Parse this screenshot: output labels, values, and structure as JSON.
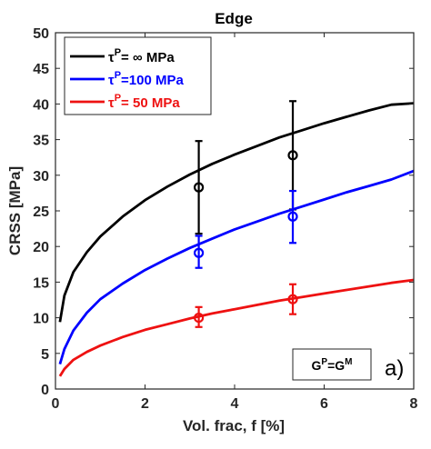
{
  "chart_data": {
    "type": "line",
    "title": "Edge",
    "xlabel": "Vol. frac, f [%]",
    "ylabel": "CRSS [MPa]",
    "xlim": [
      0,
      8
    ],
    "ylim": [
      0,
      50
    ],
    "xticks": [
      0,
      2,
      4,
      6,
      8
    ],
    "yticks": [
      0,
      5,
      10,
      15,
      20,
      25,
      30,
      35,
      40,
      45,
      50
    ],
    "grid": false,
    "legend_position": "top-left",
    "series": [
      {
        "name_parts": [
          "τ",
          "P",
          "=  ∞ MPa"
        ],
        "color": "#000000",
        "curve": {
          "x": [
            0.1,
            0.2,
            0.4,
            0.7,
            1,
            1.5,
            2,
            2.5,
            3,
            3.5,
            4,
            4.5,
            5,
            5.5,
            6,
            6.5,
            7,
            7.5,
            8
          ],
          "y": [
            9.4,
            13.1,
            16.4,
            19.2,
            21.4,
            24.2,
            26.5,
            28.4,
            30.1,
            31.6,
            32.9,
            34.1,
            35.3,
            36.3,
            37.3,
            38.2,
            39.1,
            39.9,
            40.1
          ]
        },
        "points": [
          {
            "x": 3.2,
            "y": 28.3,
            "ylo": 21.8,
            "yhi": 34.8
          },
          {
            "x": 5.3,
            "y": 32.8,
            "ylo": 25.2,
            "yhi": 40.4
          }
        ]
      },
      {
        "name_parts": [
          "τ",
          "P",
          "=100 MPa"
        ],
        "color": "#0000ff",
        "curve": {
          "x": [
            0.1,
            0.2,
            0.4,
            0.7,
            1,
            1.5,
            2,
            2.5,
            3,
            3.5,
            4,
            4.5,
            5,
            5.5,
            6,
            6.5,
            7,
            7.5,
            8
          ],
          "y": [
            3.5,
            5.6,
            8.2,
            10.7,
            12.6,
            14.8,
            16.7,
            18.3,
            19.8,
            21.1,
            22.4,
            23.5,
            24.6,
            25.6,
            26.6,
            27.6,
            28.5,
            29.4,
            30.6
          ]
        },
        "points": [
          {
            "x": 3.2,
            "y": 19.1,
            "ylo": 17.0,
            "yhi": 21.5
          },
          {
            "x": 5.3,
            "y": 24.2,
            "ylo": 20.5,
            "yhi": 27.8
          }
        ]
      },
      {
        "name_parts": [
          "τ",
          "P",
          "=  50 MPa"
        ],
        "color": "#ee1111",
        "curve": {
          "x": [
            0.1,
            0.2,
            0.4,
            0.7,
            1,
            1.5,
            2,
            2.5,
            3,
            3.5,
            4,
            4.5,
            5,
            5.5,
            6,
            6.5,
            7,
            7.5,
            8
          ],
          "y": [
            1.8,
            2.8,
            4.1,
            5.2,
            6.1,
            7.3,
            8.3,
            9.1,
            9.9,
            10.6,
            11.2,
            11.8,
            12.4,
            12.9,
            13.4,
            13.9,
            14.4,
            14.9,
            15.3
          ]
        },
        "points": [
          {
            "x": 3.2,
            "y": 10.0,
            "ylo": 8.7,
            "yhi": 11.5
          },
          {
            "x": 5.3,
            "y": 12.6,
            "ylo": 10.5,
            "yhi": 14.7
          }
        ]
      }
    ],
    "annotation": {
      "base1": "G",
      "sup1": "P",
      "mid": "=G",
      "sup2": "M"
    },
    "panel_label": "a)"
  }
}
